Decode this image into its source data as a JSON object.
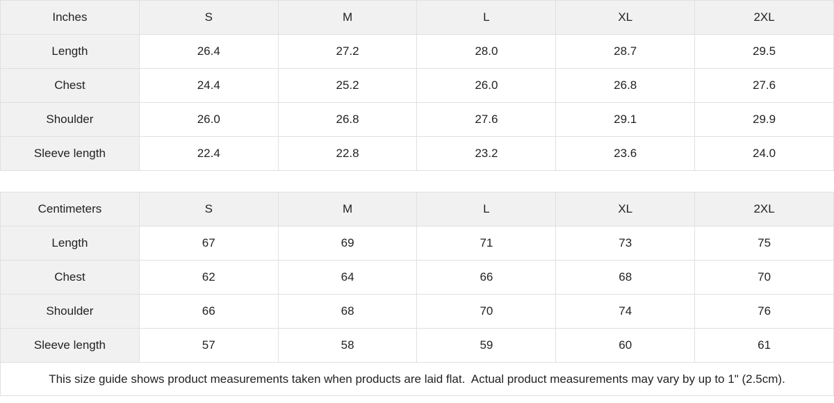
{
  "colors": {
    "header_bg": "#f1f1f1",
    "cell_bg": "#ffffff",
    "border": "#e0e0e0",
    "text": "#222222"
  },
  "tables": [
    {
      "id": "inches",
      "header": [
        "Inches",
        "S",
        "M",
        "L",
        "XL",
        "2XL"
      ],
      "rows": [
        {
          "label": "Length",
          "values": [
            "26.4",
            "27.2",
            "28.0",
            "28.7",
            "29.5"
          ]
        },
        {
          "label": "Chest",
          "values": [
            "24.4",
            "25.2",
            "26.0",
            "26.8",
            "27.6"
          ]
        },
        {
          "label": "Shoulder",
          "values": [
            "26.0",
            "26.8",
            "27.6",
            "29.1",
            "29.9"
          ]
        },
        {
          "label": "Sleeve length",
          "values": [
            "22.4",
            "22.8",
            "23.2",
            "23.6",
            "24.0"
          ]
        }
      ]
    },
    {
      "id": "centimeters",
      "header": [
        "Centimeters",
        "S",
        "M",
        "L",
        "XL",
        "2XL"
      ],
      "rows": [
        {
          "label": "Length",
          "values": [
            "67",
            "69",
            "71",
            "73",
            "75"
          ]
        },
        {
          "label": "Chest",
          "values": [
            "62",
            "64",
            "66",
            "68",
            "70"
          ]
        },
        {
          "label": "Shoulder",
          "values": [
            "66",
            "68",
            "70",
            "74",
            "76"
          ]
        },
        {
          "label": "Sleeve length",
          "values": [
            "57",
            "58",
            "59",
            "60",
            "61"
          ]
        }
      ]
    }
  ],
  "footer": {
    "note": "This size guide shows product measurements taken when products are laid flat.  Actual product measurements may vary by up to 1\" (2.5cm)."
  },
  "chart_data": [
    {
      "type": "table",
      "title": "Size guide (Inches)",
      "columns": [
        "Inches",
        "S",
        "M",
        "L",
        "XL",
        "2XL"
      ],
      "rows": [
        [
          "Length",
          26.4,
          27.2,
          28.0,
          28.7,
          29.5
        ],
        [
          "Chest",
          24.4,
          25.2,
          26.0,
          26.8,
          27.6
        ],
        [
          "Shoulder",
          26.0,
          26.8,
          27.6,
          29.1,
          29.9
        ],
        [
          "Sleeve length",
          22.4,
          22.8,
          23.2,
          23.6,
          24.0
        ]
      ]
    },
    {
      "type": "table",
      "title": "Size guide (Centimeters)",
      "columns": [
        "Centimeters",
        "S",
        "M",
        "L",
        "XL",
        "2XL"
      ],
      "rows": [
        [
          "Length",
          67,
          69,
          71,
          73,
          75
        ],
        [
          "Chest",
          62,
          64,
          66,
          68,
          70
        ],
        [
          "Shoulder",
          66,
          68,
          70,
          74,
          76
        ],
        [
          "Sleeve length",
          57,
          58,
          59,
          60,
          61
        ]
      ]
    }
  ]
}
